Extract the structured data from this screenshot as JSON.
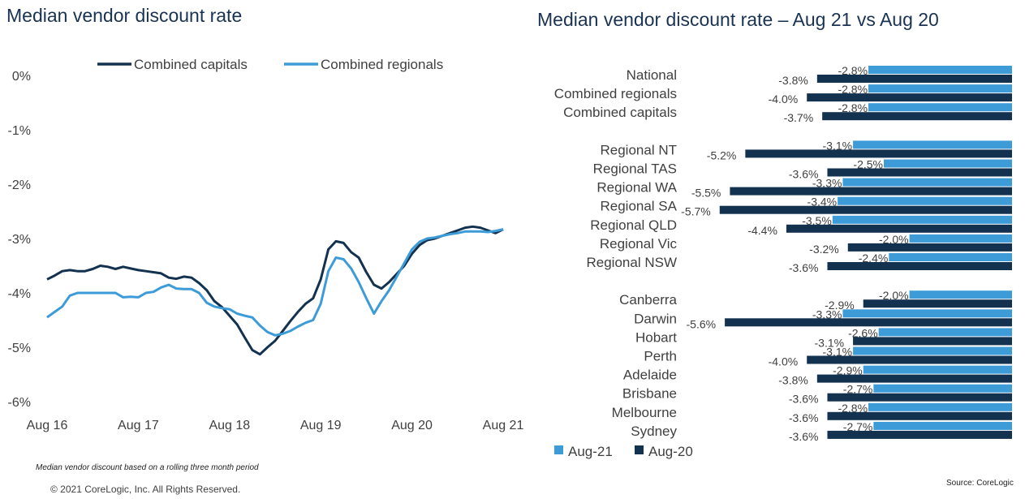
{
  "left_title": "Median vendor discount rate",
  "right_title": "Median vendor discount rate – Aug 21 vs Aug 20",
  "footnote": "Median vendor discount based on a rolling three month period",
  "copyright": "© 2021 CoreLogic, Inc. All Rights Reserved.",
  "source": "Source: CoreLogic",
  "colors": {
    "dark_navy": "#13324f",
    "light_blue": "#3d9bd8"
  },
  "chart_data": [
    {
      "type": "line",
      "title": "Median vendor discount rate",
      "xlabel": "",
      "ylabel": "",
      "ylim": [
        -6,
        0
      ],
      "y_ticks": [
        "0%",
        "-1%",
        "-2%",
        "-3%",
        "-4%",
        "-5%",
        "-6%"
      ],
      "x_ticks": [
        "Aug 16",
        "Aug 17",
        "Aug 18",
        "Aug 19",
        "Aug 20",
        "Aug 21"
      ],
      "legend_position": "top",
      "x": [
        0,
        1,
        2,
        3,
        4,
        5,
        6,
        7,
        8,
        9,
        10,
        11,
        12,
        13,
        14,
        15,
        16,
        17,
        18,
        19,
        20,
        21,
        22,
        23,
        24,
        25,
        26,
        27,
        28,
        29,
        30,
        31,
        32,
        33,
        34,
        35,
        36,
        37,
        38,
        39,
        40,
        41,
        42,
        43,
        44,
        45,
        46,
        47,
        48,
        49,
        50,
        51,
        52,
        53,
        54,
        55,
        56,
        57,
        58,
        59,
        60
      ],
      "series": [
        {
          "name": "Combined capitals",
          "color": "#13324f",
          "values": [
            -3.75,
            -3.68,
            -3.6,
            -3.58,
            -3.6,
            -3.6,
            -3.56,
            -3.5,
            -3.52,
            -3.56,
            -3.52,
            -3.55,
            -3.58,
            -3.6,
            -3.62,
            -3.64,
            -3.72,
            -3.74,
            -3.7,
            -3.72,
            -3.82,
            -3.95,
            -4.15,
            -4.26,
            -4.42,
            -4.58,
            -4.82,
            -5.05,
            -5.13,
            -5.0,
            -4.88,
            -4.7,
            -4.52,
            -4.35,
            -4.2,
            -4.1,
            -3.75,
            -3.2,
            -3.05,
            -3.08,
            -3.25,
            -3.35,
            -3.62,
            -3.85,
            -3.92,
            -3.8,
            -3.65,
            -3.5,
            -3.28,
            -3.12,
            -3.03,
            -3.0,
            -2.95,
            -2.9,
            -2.85,
            -2.8,
            -2.78,
            -2.8,
            -2.85,
            -2.9,
            -2.83
          ]
        },
        {
          "name": "Combined regionals",
          "color": "#3d9bd8",
          "values": [
            -4.45,
            -4.35,
            -4.25,
            -4.05,
            -4.0,
            -4.0,
            -4.0,
            -4.0,
            -4.0,
            -4.0,
            -4.08,
            -4.07,
            -4.08,
            -4.0,
            -3.98,
            -3.9,
            -3.85,
            -3.92,
            -3.93,
            -3.93,
            -4.0,
            -4.18,
            -4.25,
            -4.28,
            -4.3,
            -4.38,
            -4.42,
            -4.45,
            -4.6,
            -4.72,
            -4.78,
            -4.75,
            -4.7,
            -4.62,
            -4.55,
            -4.5,
            -4.2,
            -3.6,
            -3.35,
            -3.38,
            -3.55,
            -3.8,
            -4.1,
            -4.38,
            -4.15,
            -3.95,
            -3.7,
            -3.45,
            -3.2,
            -3.06,
            -3.0,
            -2.98,
            -2.95,
            -2.92,
            -2.9,
            -2.87,
            -2.87,
            -2.87,
            -2.88,
            -2.86,
            -2.83
          ]
        }
      ]
    },
    {
      "type": "bar",
      "orientation": "horizontal",
      "title": "Median vendor discount rate – Aug 21 vs Aug 20",
      "categories": [
        "National",
        "Combined regionals",
        "Combined capitals",
        "Regional NT",
        "Regional TAS",
        "Regional WA",
        "Regional SA",
        "Regional QLD",
        "Regional Vic",
        "Regional NSW",
        "Canberra",
        "Darwin",
        "Hobart",
        "Perth",
        "Adelaide",
        "Brisbane",
        "Melbourne",
        "Sydney"
      ],
      "groups": [
        [
          0,
          1,
          2
        ],
        [
          3,
          4,
          5,
          6,
          7,
          8,
          9
        ],
        [
          10,
          11,
          12,
          13,
          14,
          15,
          16,
          17
        ]
      ],
      "legend_position": "bottom-left",
      "series": [
        {
          "name": "Aug-21",
          "color": "#3d9bd8",
          "values": [
            -2.8,
            -2.8,
            -2.8,
            -3.1,
            -2.5,
            -3.3,
            -3.4,
            -3.5,
            -2.0,
            -2.4,
            -2.0,
            -3.3,
            -2.6,
            -3.1,
            -2.9,
            -2.7,
            -2.8,
            -2.7
          ],
          "labels": [
            "-2.8%",
            "-2.8%",
            "-2.8%",
            "-3.1%",
            "-2.5%",
            "-3.3%",
            "-3.4%",
            "-3.5%",
            "-2.0%",
            "-2.4%",
            "-2.0%",
            "-3.3%",
            "-2.6%",
            "-3.1%",
            "-2.9%",
            "-2.7%",
            "-2.8%",
            "-2.7%"
          ]
        },
        {
          "name": "Aug-20",
          "color": "#13324f",
          "values": [
            -3.8,
            -4.0,
            -3.7,
            -5.2,
            -3.6,
            -5.5,
            -5.7,
            -4.4,
            -3.2,
            -3.6,
            -2.9,
            -5.6,
            -3.1,
            -4.0,
            -3.8,
            -3.6,
            -3.6,
            -3.6
          ],
          "labels": [
            "-3.8%",
            "-4.0%",
            "-3.7%",
            "-5.2%",
            "-3.6%",
            "-5.5%",
            "-5.7%",
            "-4.4%",
            "-3.2%",
            "-3.6%",
            "-2.9%",
            "-5.6%",
            "-3.1%",
            "-4.0%",
            "-3.8%",
            "-3.6%",
            "-3.6%",
            "-3.6%"
          ]
        }
      ]
    }
  ]
}
